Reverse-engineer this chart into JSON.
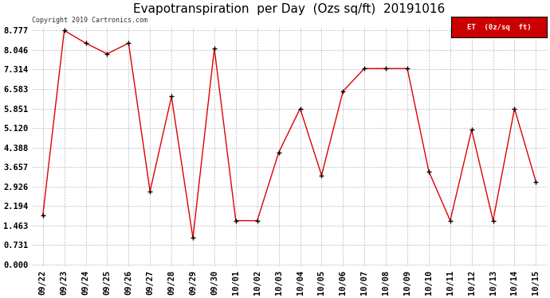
{
  "title": "Evapotranspiration  per Day  (Ozs sq/ft)  20191016",
  "copyright": "Copyright 2019 Cartronics.com",
  "legend_label": "ET  (0z/sq  ft)",
  "dates": [
    "09/22",
    "09/23",
    "09/24",
    "09/25",
    "09/26",
    "09/27",
    "09/28",
    "09/29",
    "09/30",
    "10/01",
    "10/02",
    "10/03",
    "10/04",
    "10/05",
    "10/06",
    "10/07",
    "10/08",
    "10/09",
    "10/10",
    "10/11",
    "10/12",
    "10/13",
    "10/14",
    "10/15"
  ],
  "values": [
    1.85,
    8.777,
    8.3,
    7.9,
    8.3,
    2.75,
    6.3,
    1.0,
    8.1,
    1.65,
    1.65,
    4.2,
    5.85,
    3.35,
    6.5,
    7.35,
    7.35,
    7.35,
    3.5,
    1.65,
    5.05,
    1.65,
    5.85,
    3.1
  ],
  "yticks": [
    0.0,
    0.731,
    1.463,
    2.194,
    2.926,
    3.657,
    4.388,
    5.12,
    5.851,
    6.583,
    7.314,
    8.046,
    8.777
  ],
  "ymin": 0.0,
  "ymax": 8.777,
  "line_color": "#dd0000",
  "marker_color": "#000000",
  "bg_color": "#ffffff",
  "grid_color": "#bbbbbb",
  "title_fontsize": 11,
  "tick_fontsize": 7.5,
  "copyright_fontsize": 6,
  "legend_bg": "#cc0000",
  "legend_text_color": "#ffffff"
}
